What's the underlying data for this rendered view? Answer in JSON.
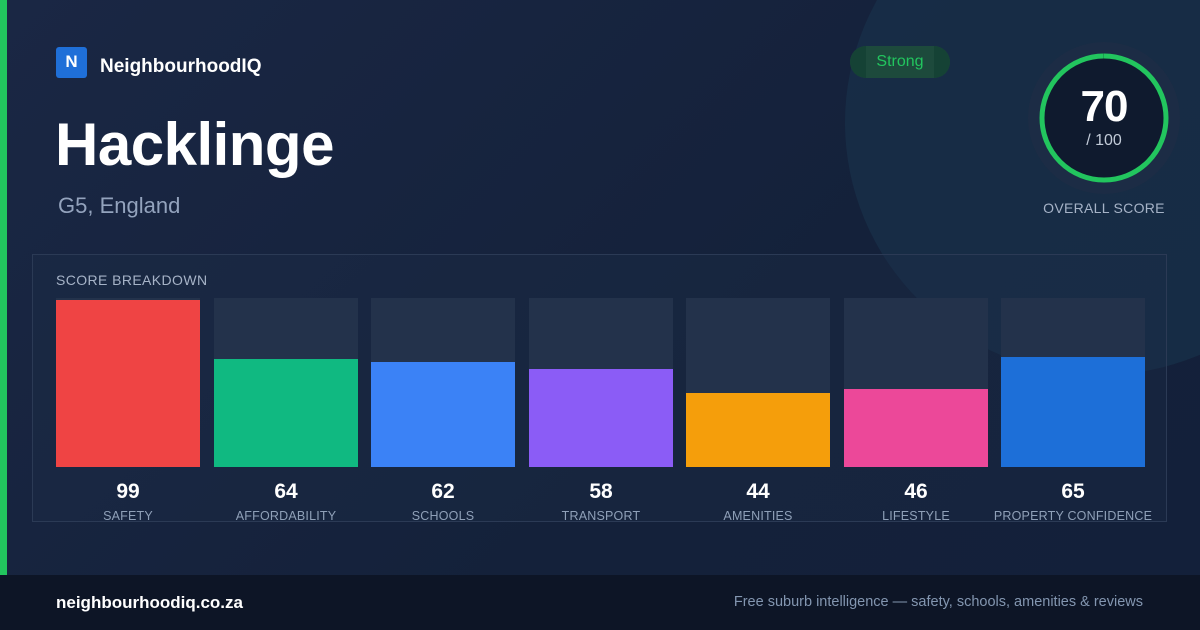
{
  "brand": {
    "mark": "N",
    "name": "NeighbourhoodIQ"
  },
  "badge": {
    "label": "Strong"
  },
  "location": {
    "name": "Hacklinge",
    "region": "G5, England"
  },
  "overall": {
    "value": "70",
    "max": "/ 100",
    "label": "OVERALL SCORE",
    "fraction": 0.7,
    "color": "#22c55e"
  },
  "breakdown": {
    "title": "SCORE BREAKDOWN",
    "items": [
      {
        "value": "99",
        "label": "SAFETY",
        "score": 99,
        "color": "#ef4444"
      },
      {
        "value": "64",
        "label": "AFFORDABILITY",
        "score": 64,
        "color": "#10b981"
      },
      {
        "value": "62",
        "label": "SCHOOLS",
        "score": 62,
        "color": "#3b82f6"
      },
      {
        "value": "58",
        "label": "TRANSPORT",
        "score": 58,
        "color": "#8b5cf6"
      },
      {
        "value": "44",
        "label": "AMENITIES",
        "score": 44,
        "color": "#f59e0b"
      },
      {
        "value": "46",
        "label": "LIFESTYLE",
        "score": 46,
        "color": "#ec4899"
      },
      {
        "value": "65",
        "label": "PROPERTY CONFIDENCE",
        "score": 65,
        "color": "#1d6fd8"
      }
    ]
  },
  "footer": {
    "url": "neighbourhoodiq.co.za",
    "tagline": "Free suburb intelligence — safety, schools, amenities & reviews"
  }
}
